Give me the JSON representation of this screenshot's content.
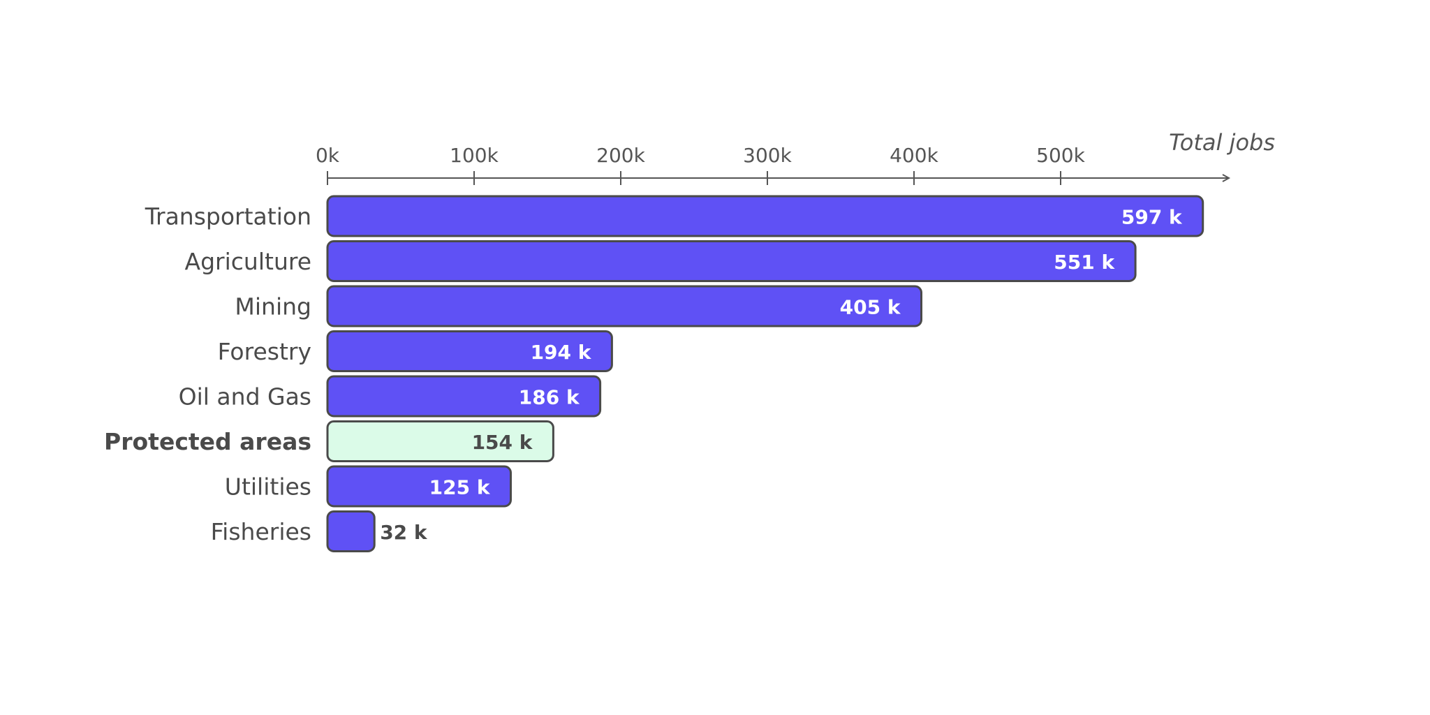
{
  "chart_data": {
    "type": "bar",
    "orientation": "horizontal",
    "x_axis_title": "Total jobs",
    "x_ticks": [
      "0k",
      "100k",
      "200k",
      "300k",
      "400k",
      "500k"
    ],
    "xlim": [
      0,
      610000
    ],
    "grid": false,
    "categories": [
      "Transportation",
      "Agriculture",
      "Mining",
      "Forestry",
      "Oil and Gas",
      "Protected areas",
      "Utilities",
      "Fisheries"
    ],
    "values": [
      597000,
      551000,
      405000,
      194000,
      186000,
      154000,
      125000,
      32000
    ],
    "value_labels": [
      "597 k",
      "551 k",
      "405 k",
      "194 k",
      "186 k",
      "154 k",
      "125 k",
      "32 k"
    ],
    "highlight_category": "Protected areas",
    "colors": {
      "bar": "#5f51f5",
      "highlight_bar": "#dbfbe8",
      "outline": "#4a4a4a",
      "text": "#4a4a4a",
      "inside_label": "#ffffff",
      "axis": "#555555"
    }
  }
}
